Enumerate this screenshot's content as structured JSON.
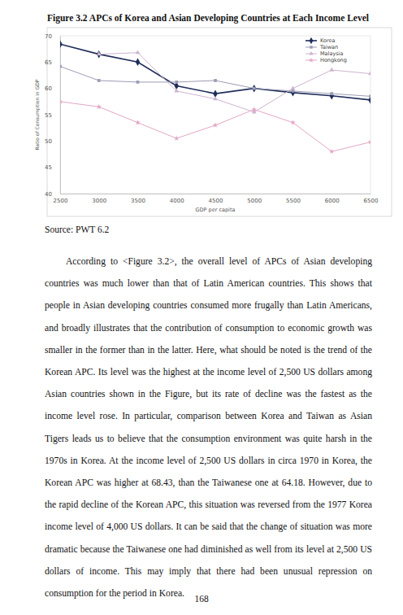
{
  "page": {
    "figure_title": "Figure 3.2    APCs of Korea and Asian Developing Countries at Each Income Level",
    "source": "Source: PWT 6.2",
    "paragraphs": [
      "According to <Figure 3.2>, the overall level of APCs of Asian developing countries was much lower than that of Latin American countries. This shows that people in Asian developing countries consumed more frugally than Latin Americans, and broadly illustrates that the contribution of consumption to economic growth was smaller in the former than in the latter. Here, what should be noted is the trend of the Korean APC. Its level was the highest at the income level of 2,500 US dollars among Asian countries shown in the Figure, but its rate of decline was the fastest as the income level rose. In particular, comparison between Korea and Taiwan as Asian Tigers leads us to believe that the consumption environment was quite harsh in the 1970s in Korea. At the income level of 2,500 US dollars in circa 1970 in Korea, the Korean APC was higher at 68.43, than the Taiwanese one at 64.18. However, due to the rapid decline of the Korean APC, this situation was reversed from the 1977 Korea income level of 4,000 US dollars. It can be said that the change of situation was more dramatic because the Taiwanese one had diminished as well from its level at 2,500 US dollars of income. This may imply that there had been unusual repression on consumption for the period in Korea."
    ],
    "page_number": "168"
  },
  "chart_data": {
    "type": "line",
    "x_label": "GDP per capita",
    "y_label": "Ratio of Consumption in GDP",
    "x": [
      2500,
      3000,
      3500,
      4000,
      4500,
      5000,
      5500,
      6000,
      6500
    ],
    "series": [
      {
        "name": "Korea",
        "color": "#1f2d5a",
        "marker": "diamond",
        "values": [
          68.43,
          66.5,
          65,
          60.5,
          59,
          60,
          59.2,
          58.6,
          57.8
        ]
      },
      {
        "name": "Taiwan",
        "color": "#9c9cb4",
        "marker": "square",
        "values": [
          64.18,
          61.5,
          61.2,
          61.2,
          61.5,
          60,
          59.5,
          59,
          58.5
        ]
      },
      {
        "name": "Malaysia",
        "color": "#cdb4cf",
        "marker": "triangle",
        "values": [
          null,
          66.5,
          66.8,
          59.5,
          58,
          55.5,
          60,
          63.5,
          62.8
        ]
      },
      {
        "name": "Hongkong",
        "color": "#e3a6c6",
        "marker": "star",
        "values": [
          57.5,
          56.5,
          53.5,
          50.5,
          53,
          56,
          53.5,
          48,
          49.8
        ]
      }
    ],
    "xlim": [
      2500,
      6500
    ],
    "xticks": [
      2500,
      3000,
      3500,
      4000,
      4500,
      5000,
      5500,
      6000,
      6500
    ],
    "ylim": [
      40,
      70
    ],
    "yticks": [
      40,
      45,
      50,
      55,
      60,
      65,
      70
    ],
    "grid": false,
    "legend": "top-right"
  }
}
